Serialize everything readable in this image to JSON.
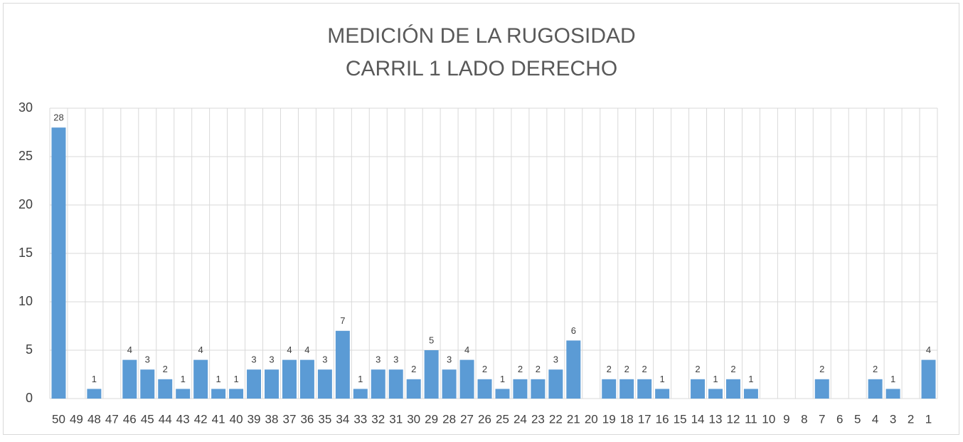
{
  "chart_data": {
    "type": "bar",
    "title": "MEDICIÓN DE LA RUGOSIDAD",
    "subtitle": "CARRIL 1 LADO DERECHO",
    "categories": [
      "50",
      "49",
      "48",
      "47",
      "46",
      "45",
      "44",
      "43",
      "42",
      "41",
      "40",
      "39",
      "38",
      "37",
      "36",
      "35",
      "34",
      "33",
      "32",
      "31",
      "30",
      "29",
      "28",
      "27",
      "26",
      "25",
      "24",
      "23",
      "22",
      "21",
      "20",
      "19",
      "18",
      "17",
      "16",
      "15",
      "14",
      "13",
      "12",
      "11",
      "10",
      "9",
      "8",
      "7",
      "6",
      "5",
      "4",
      "3",
      "2",
      "1"
    ],
    "values": [
      28,
      null,
      1,
      null,
      4,
      3,
      2,
      1,
      4,
      1,
      1,
      3,
      3,
      4,
      4,
      3,
      7,
      1,
      3,
      3,
      2,
      5,
      3,
      4,
      2,
      1,
      2,
      2,
      3,
      6,
      null,
      2,
      2,
      2,
      1,
      null,
      2,
      1,
      2,
      1,
      null,
      null,
      null,
      2,
      null,
      null,
      2,
      1,
      null,
      4
    ],
    "color": "#5b9bd5",
    "ylim": [
      0,
      30
    ],
    "yticks": [
      0,
      5,
      10,
      15,
      20,
      25,
      30
    ],
    "grid": true
  }
}
